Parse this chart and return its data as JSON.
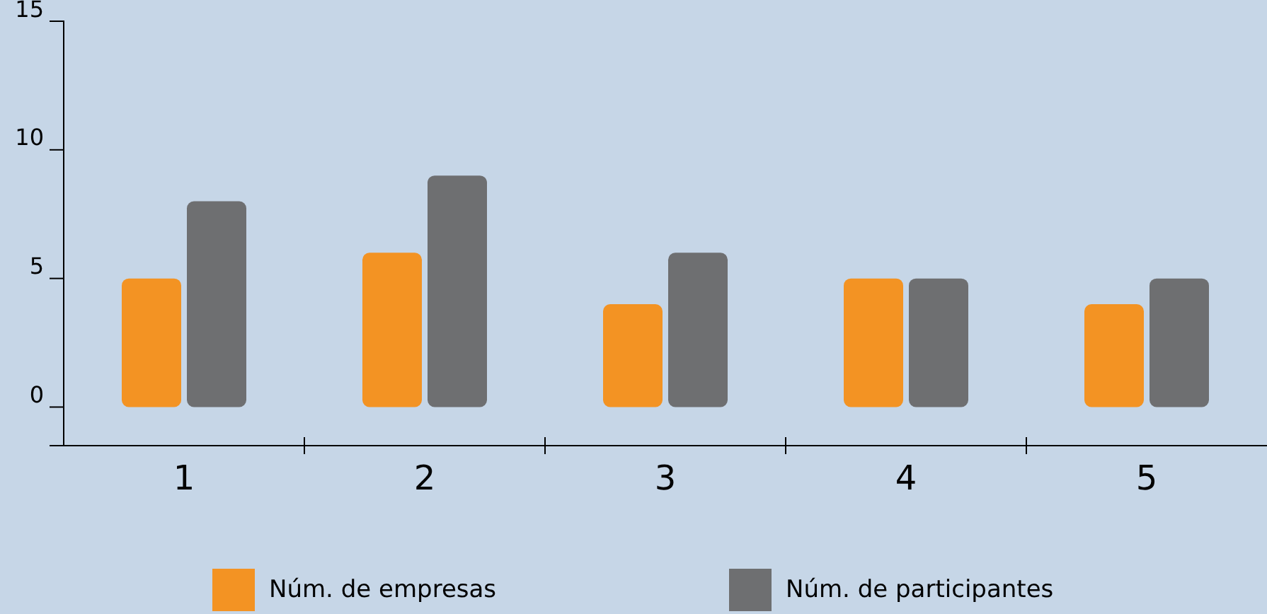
{
  "chart_data": {
    "type": "bar",
    "categories": [
      "1",
      "2",
      "3",
      "4",
      "5"
    ],
    "series": [
      {
        "name": "Núm.  de empresas",
        "color": "#f39323",
        "values": [
          5,
          6,
          4,
          5,
          4
        ]
      },
      {
        "name": "Núm.  de participantes",
        "color": "#6e6f71",
        "values": [
          8,
          9,
          6,
          5,
          5
        ]
      }
    ],
    "ylim": [
      -1.5,
      15
    ],
    "yticks": [
      0,
      5,
      10,
      15
    ],
    "grid": false,
    "legend": "bottom"
  }
}
